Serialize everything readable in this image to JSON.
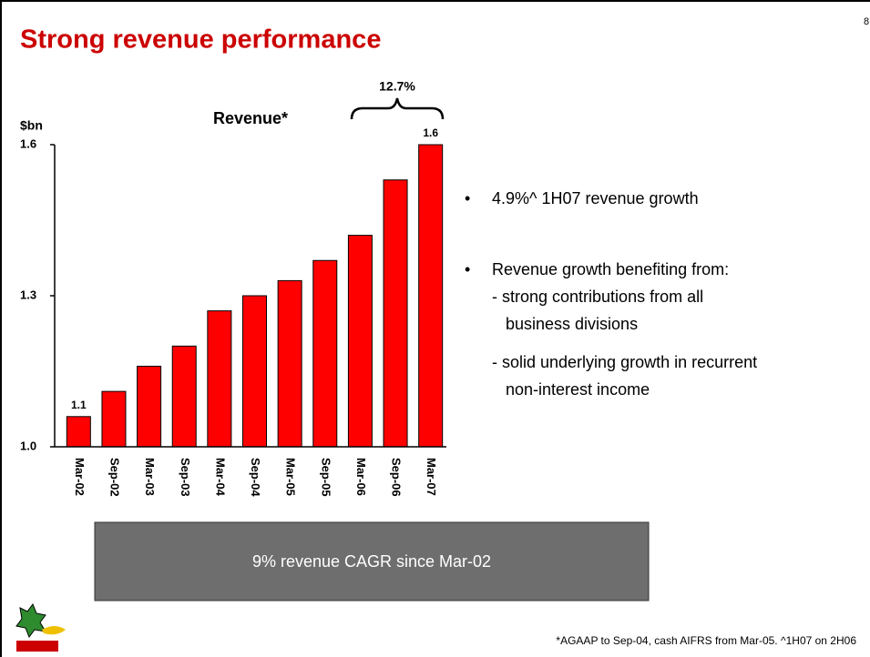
{
  "slide": {
    "title": "Strong revenue performance",
    "page_number": "8",
    "bullets": [
      {
        "text": "4.9%^ 1H07 revenue growth"
      },
      {
        "text": "Revenue growth benefiting from:",
        "lines": [
          "- strong contributions from all",
          "business divisions",
          "- solid underlying growth in recurrent",
          "non-interest income"
        ]
      }
    ],
    "highlight": "9% revenue CAGR since Mar-02",
    "footnote": "*AGAAP to Sep-04, cash AIFRS from Mar-05.  ^1H07 on 2H06"
  },
  "chart_data": {
    "type": "bar",
    "title": "Revenue*",
    "y_label": "$bn",
    "categories": [
      "Mar-02",
      "Sep-02",
      "Mar-03",
      "Sep-03",
      "Mar-04",
      "Sep-04",
      "Mar-05",
      "Sep-05",
      "Mar-06",
      "Sep-06",
      "Mar-07"
    ],
    "values": [
      1.06,
      1.11,
      1.16,
      1.2,
      1.27,
      1.3,
      1.33,
      1.37,
      1.42,
      1.53,
      1.6
    ],
    "value_labels": [
      "1.1",
      null,
      null,
      null,
      null,
      null,
      null,
      null,
      null,
      null,
      "1.6"
    ],
    "color": "#ff0000",
    "ylim": [
      1,
      1.6
    ],
    "yticks": [
      {
        "value": 1,
        "label": "1.0"
      },
      1.3,
      1.6
    ],
    "annotation": "12.7%"
  }
}
